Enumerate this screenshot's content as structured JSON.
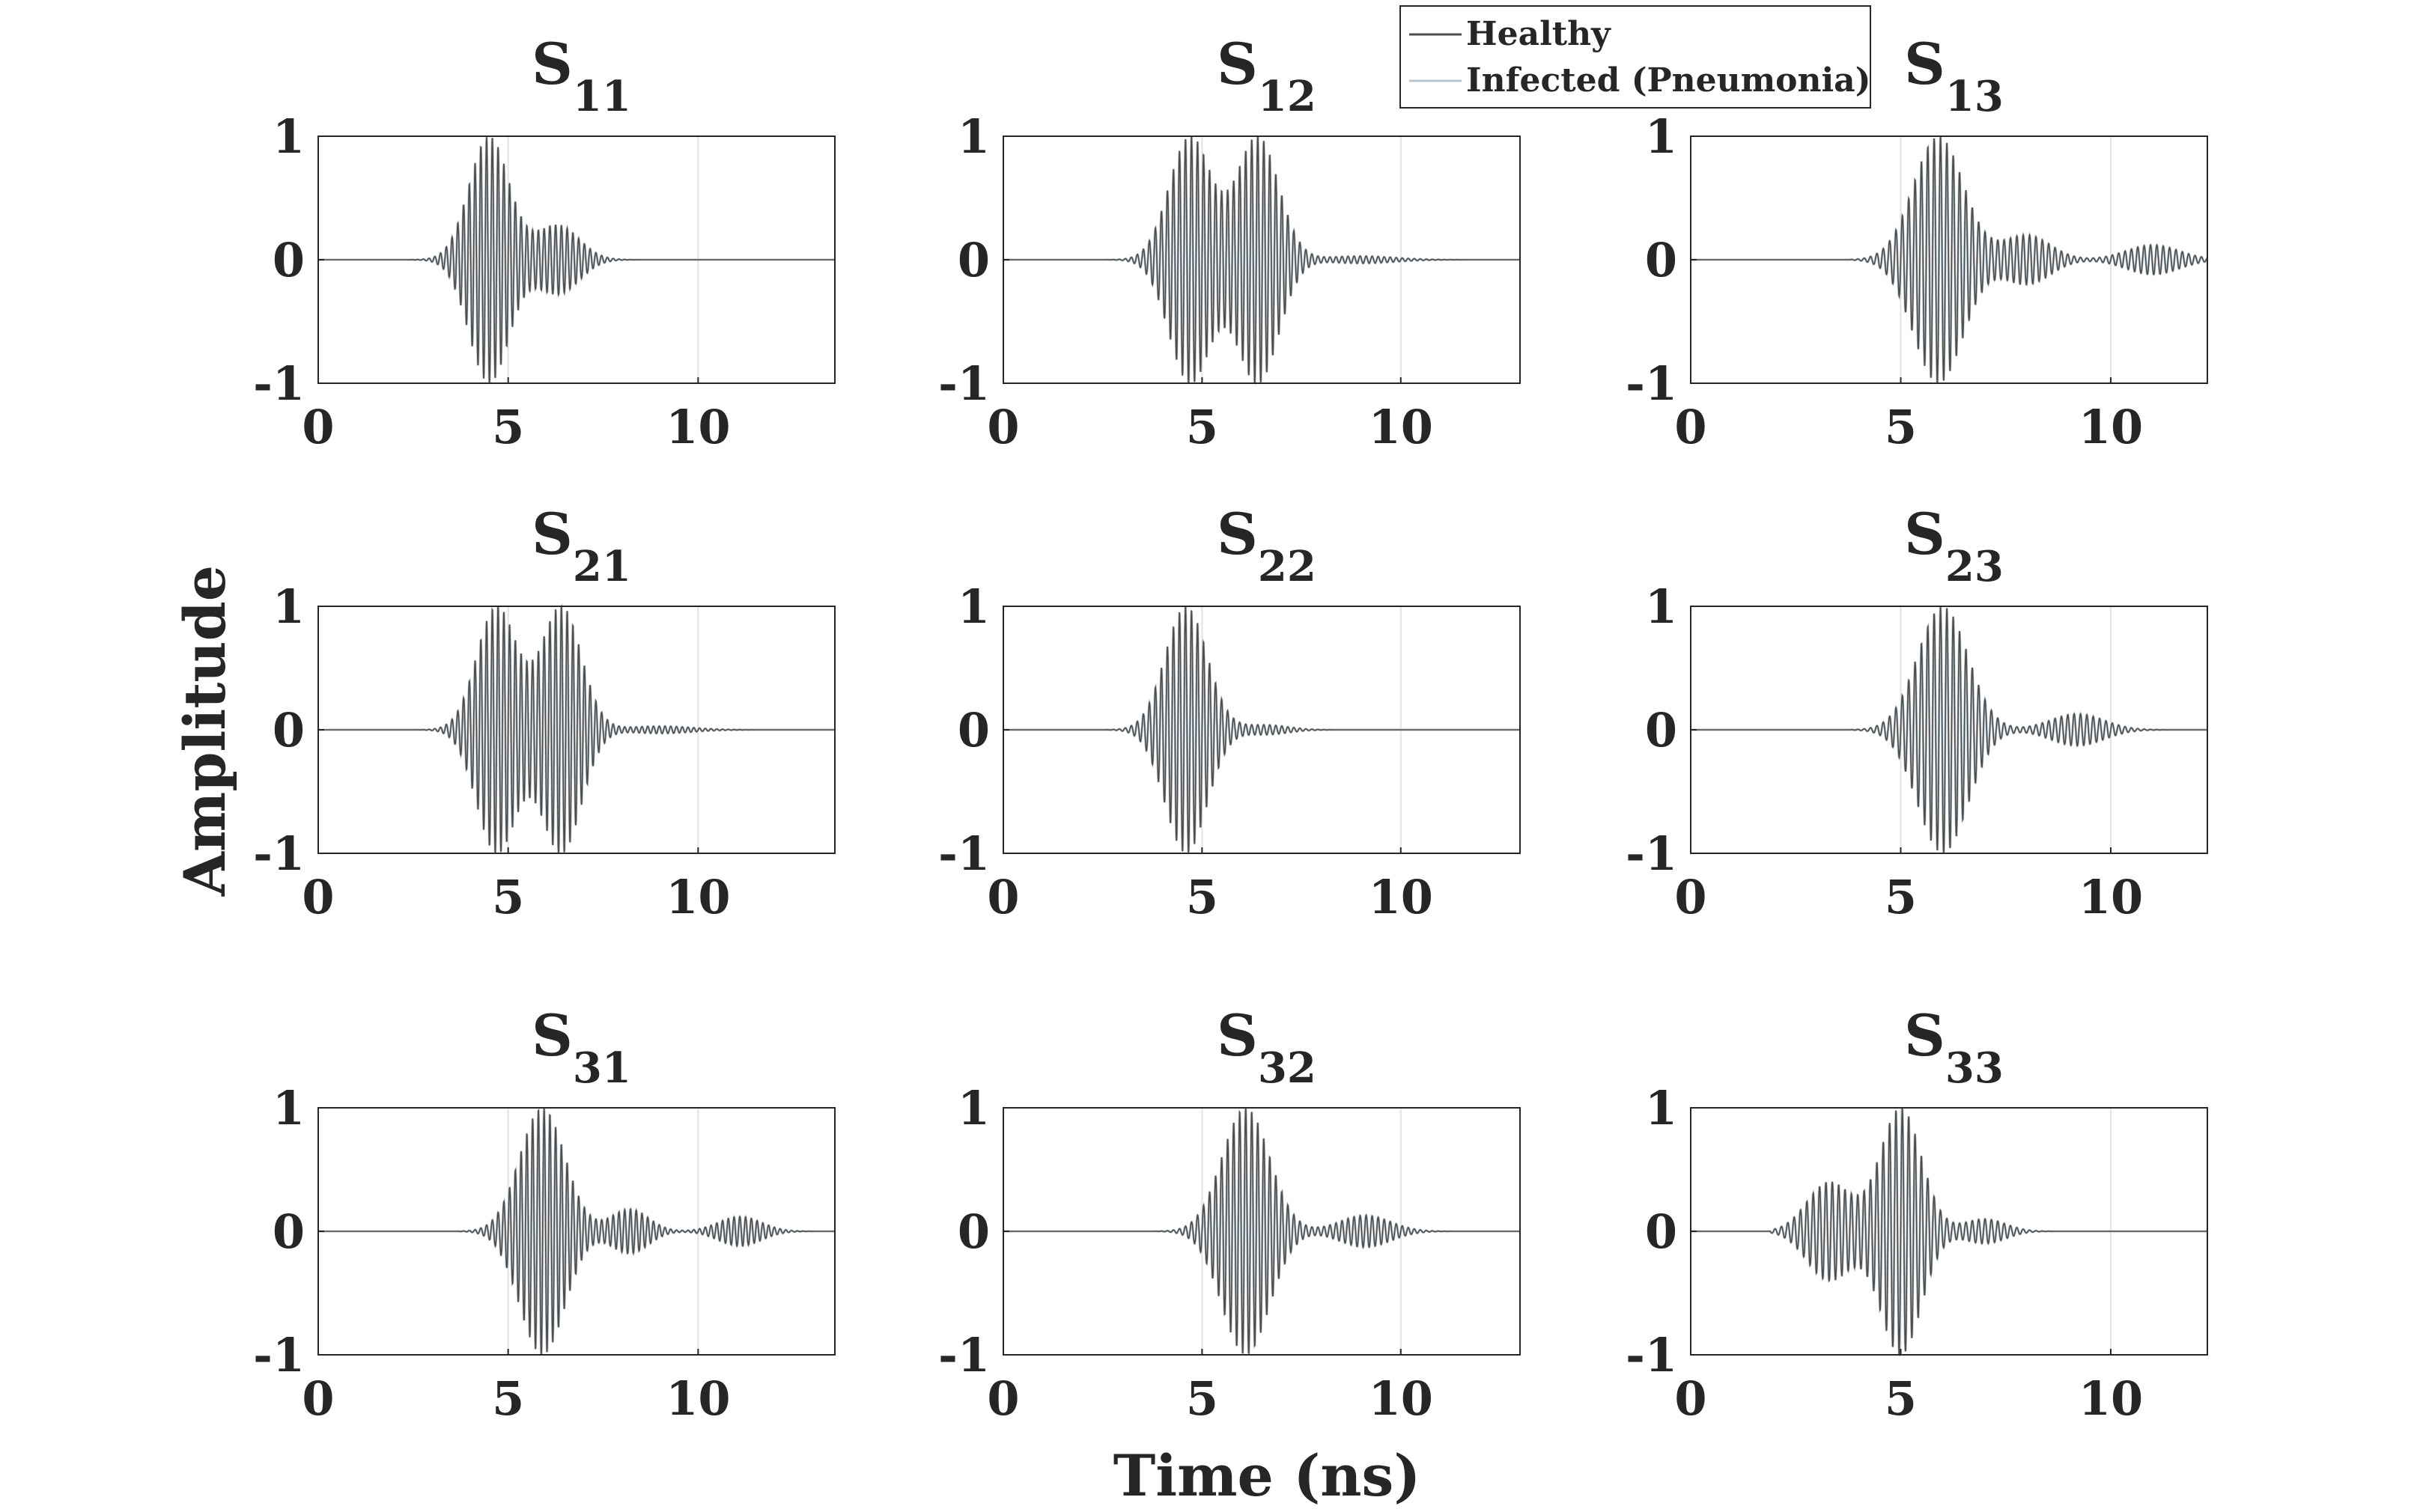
{
  "figure": {
    "xlabel": "Time (ns)",
    "ylabel": "Amplitude"
  },
  "legend": {
    "placement": "top-right",
    "entries": [
      {
        "label": "Healthy",
        "color": "#4d4d4d"
      },
      {
        "label": "Infected (Pneumonia)",
        "color": "#b8c4cc"
      }
    ]
  },
  "colors": {
    "healthy": "#4d4d4d",
    "infected": "#b8c4cc",
    "axis": "#262626",
    "grid": "#e3e3e3"
  },
  "chart_data": [
    {
      "type": "line",
      "title_main": "S",
      "title_sub": "11",
      "xlim": [
        0,
        13.6
      ],
      "ylim": [
        -1,
        1
      ],
      "xticks": [
        0,
        5,
        10
      ],
      "yticks": [
        -1,
        0,
        1
      ],
      "grid": "x",
      "series": [
        {
          "name": "Healthy",
          "waveform": {
            "start": 1.9,
            "end": 9.0,
            "freq_cycles_per_ns": 6.6,
            "bursts": [
              {
                "center": 4.5,
                "amp": 1.0,
                "width": 0.75
              },
              {
                "center": 6.3,
                "amp": 0.28,
                "width": 0.8
              }
            ]
          }
        },
        {
          "name": "Infected (Pneumonia)",
          "same_as": "Healthy"
        }
      ]
    },
    {
      "type": "line",
      "title_main": "S",
      "title_sub": "12",
      "xlim": [
        0,
        13.0
      ],
      "ylim": [
        -1,
        1
      ],
      "xticks": [
        0,
        5,
        10
      ],
      "yticks": [
        -1,
        0,
        1
      ],
      "grid": "x",
      "series": [
        {
          "name": "Healthy",
          "waveform": {
            "start": 2.5,
            "end": 13.0,
            "freq_cycles_per_ns": 6.6,
            "bursts": [
              {
                "center": 4.7,
                "amp": 1.0,
                "width": 0.75
              },
              {
                "center": 6.4,
                "amp": 1.0,
                "width": 0.75
              },
              {
                "center": 9.0,
                "amp": 0.03,
                "width": 1.2
              }
            ]
          }
        },
        {
          "name": "Infected (Pneumonia)",
          "same_as": "Healthy"
        }
      ]
    },
    {
      "type": "line",
      "title_main": "S",
      "title_sub": "13",
      "xlim": [
        0,
        12.3
      ],
      "ylim": [
        -1,
        1
      ],
      "xticks": [
        0,
        5,
        10
      ],
      "yticks": [
        -1,
        0,
        1
      ],
      "grid": "x",
      "series": [
        {
          "name": "Healthy",
          "waveform": {
            "start": 3.8,
            "end": 12.3,
            "freq_cycles_per_ns": 6.6,
            "bursts": [
              {
                "center": 5.9,
                "amp": 1.0,
                "width": 0.85
              },
              {
                "center": 8.0,
                "amp": 0.2,
                "width": 0.8
              },
              {
                "center": 11.0,
                "amp": 0.12,
                "width": 0.9
              }
            ]
          }
        },
        {
          "name": "Infected (Pneumonia)",
          "same_as": "Healthy"
        }
      ]
    },
    {
      "type": "line",
      "title_main": "S",
      "title_sub": "21",
      "xlim": [
        0,
        13.6
      ],
      "ylim": [
        -1,
        1
      ],
      "xticks": [
        0,
        5,
        10
      ],
      "yticks": [
        -1,
        0,
        1
      ],
      "grid": "x",
      "series": [
        {
          "name": "Healthy",
          "waveform": {
            "start": 2.5,
            "end": 13.6,
            "freq_cycles_per_ns": 6.6,
            "bursts": [
              {
                "center": 4.7,
                "amp": 1.0,
                "width": 0.75
              },
              {
                "center": 6.4,
                "amp": 1.0,
                "width": 0.75
              },
              {
                "center": 9.0,
                "amp": 0.03,
                "width": 1.2
              }
            ]
          }
        },
        {
          "name": "Infected (Pneumonia)",
          "same_as": "Healthy"
        }
      ]
    },
    {
      "type": "line",
      "title_main": "S",
      "title_sub": "22",
      "xlim": [
        0,
        13.0
      ],
      "ylim": [
        -1,
        1
      ],
      "xticks": [
        0,
        5,
        10
      ],
      "yticks": [
        -1,
        0,
        1
      ],
      "grid": "x",
      "series": [
        {
          "name": "Healthy",
          "waveform": {
            "start": 1.9,
            "end": 9.0,
            "freq_cycles_per_ns": 6.6,
            "bursts": [
              {
                "center": 4.6,
                "amp": 1.0,
                "width": 0.75
              },
              {
                "center": 6.6,
                "amp": 0.04,
                "width": 0.8
              }
            ]
          }
        },
        {
          "name": "Infected (Pneumonia)",
          "same_as": "Healthy"
        }
      ]
    },
    {
      "type": "line",
      "title_main": "S",
      "title_sub": "23",
      "xlim": [
        0,
        12.3
      ],
      "ylim": [
        -1,
        1
      ],
      "xticks": [
        0,
        5,
        10
      ],
      "yticks": [
        -1,
        0,
        1
      ],
      "grid": "x",
      "series": [
        {
          "name": "Healthy",
          "waveform": {
            "start": 3.8,
            "end": 12.3,
            "freq_cycles_per_ns": 6.6,
            "bursts": [
              {
                "center": 6.0,
                "amp": 1.0,
                "width": 0.85
              },
              {
                "center": 9.2,
                "amp": 0.13,
                "width": 0.9
              }
            ]
          }
        },
        {
          "name": "Infected (Pneumonia)",
          "same_as": "Healthy"
        }
      ]
    },
    {
      "type": "line",
      "title_main": "S",
      "title_sub": "31",
      "xlim": [
        0,
        13.6
      ],
      "ylim": [
        -1,
        1
      ],
      "xticks": [
        0,
        5,
        10
      ],
      "yticks": [
        -1,
        0,
        1
      ],
      "grid": "x",
      "series": [
        {
          "name": "Healthy",
          "waveform": {
            "start": 3.7,
            "end": 13.6,
            "freq_cycles_per_ns": 6.6,
            "bursts": [
              {
                "center": 5.9,
                "amp": 1.0,
                "width": 0.85
              },
              {
                "center": 8.2,
                "amp": 0.18,
                "width": 0.7
              },
              {
                "center": 11.1,
                "amp": 0.12,
                "width": 0.8
              }
            ]
          }
        },
        {
          "name": "Infected (Pneumonia)",
          "same_as": "Healthy"
        }
      ]
    },
    {
      "type": "line",
      "title_main": "S",
      "title_sub": "32",
      "xlim": [
        0,
        13.0
      ],
      "ylim": [
        -1,
        1
      ],
      "xticks": [
        0,
        5,
        10
      ],
      "yticks": [
        -1,
        0,
        1
      ],
      "grid": "x",
      "series": [
        {
          "name": "Healthy",
          "waveform": {
            "start": 3.8,
            "end": 13.0,
            "freq_cycles_per_ns": 6.6,
            "bursts": [
              {
                "center": 6.1,
                "amp": 1.0,
                "width": 0.85
              },
              {
                "center": 9.1,
                "amp": 0.13,
                "width": 0.9
              }
            ]
          }
        },
        {
          "name": "Infected (Pneumonia)",
          "same_as": "Healthy"
        }
      ]
    },
    {
      "type": "line",
      "title_main": "S",
      "title_sub": "33",
      "xlim": [
        0,
        12.3
      ],
      "ylim": [
        -1,
        1
      ],
      "xticks": [
        0,
        5,
        10
      ],
      "yticks": [
        -1,
        0,
        1
      ],
      "grid": "x",
      "series": [
        {
          "name": "Healthy",
          "waveform": {
            "start": 1.9,
            "end": 8.6,
            "freq_cycles_per_ns": 6.6,
            "bursts": [
              {
                "center": 3.3,
                "amp": 0.4,
                "width": 0.75
              },
              {
                "center": 5.0,
                "amp": 1.0,
                "width": 0.7
              },
              {
                "center": 7.0,
                "amp": 0.1,
                "width": 0.7
              }
            ]
          }
        },
        {
          "name": "Infected (Pneumonia)",
          "same_as": "Healthy"
        }
      ]
    }
  ]
}
